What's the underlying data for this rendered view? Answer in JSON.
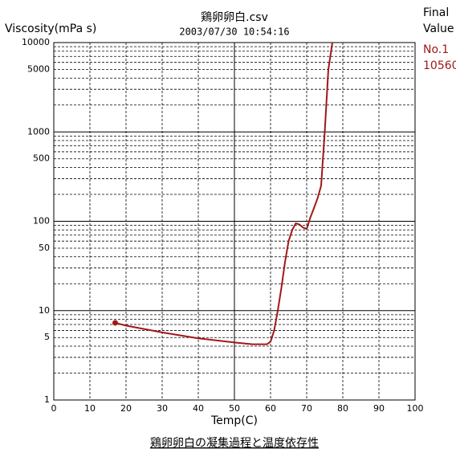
{
  "chart_data": {
    "type": "line",
    "title": "鶏卵卵白.csv",
    "subtitle": "2003/07/30 10:54:16",
    "y_label": "Viscosity(mPa s)",
    "x_label": "Temp(C)",
    "caption": "鶏卵卵白の凝集過程と温度依存性",
    "final_heading": [
      "Final",
      "Value"
    ],
    "log_y": true,
    "xlim": [
      0,
      100
    ],
    "ylim": [
      1,
      10000
    ],
    "xticks": [
      0,
      10,
      20,
      30,
      40,
      50,
      60,
      70,
      80,
      90,
      100
    ],
    "yticks": [
      1,
      5,
      10,
      50,
      100,
      500,
      1000,
      5000,
      10000
    ],
    "y_minor_grid": [
      2,
      3,
      4,
      6,
      7,
      8,
      9,
      20,
      30,
      40,
      60,
      70,
      80,
      90,
      200,
      300,
      400,
      600,
      700,
      800,
      900,
      2000,
      3000,
      4000,
      6000,
      7000,
      8000,
      9000
    ],
    "x_solid_grid": [
      50
    ],
    "grid": true,
    "series": [
      {
        "name": "No.1",
        "final_value_label": "10560",
        "color": "#a01818",
        "x": [
          17,
          20,
          30,
          40,
          50,
          55,
          59,
          60,
          61,
          62,
          63,
          64,
          65,
          66,
          67,
          68,
          69,
          70,
          71,
          72,
          73,
          74,
          75,
          76,
          77.2
        ],
        "values": [
          7.3,
          6.8,
          5.7,
          4.9,
          4.4,
          4.2,
          4.2,
          4.5,
          6,
          10,
          18,
          35,
          60,
          80,
          95,
          92,
          85,
          82,
          110,
          140,
          180,
          250,
          1000,
          5000,
          10560
        ]
      }
    ]
  }
}
